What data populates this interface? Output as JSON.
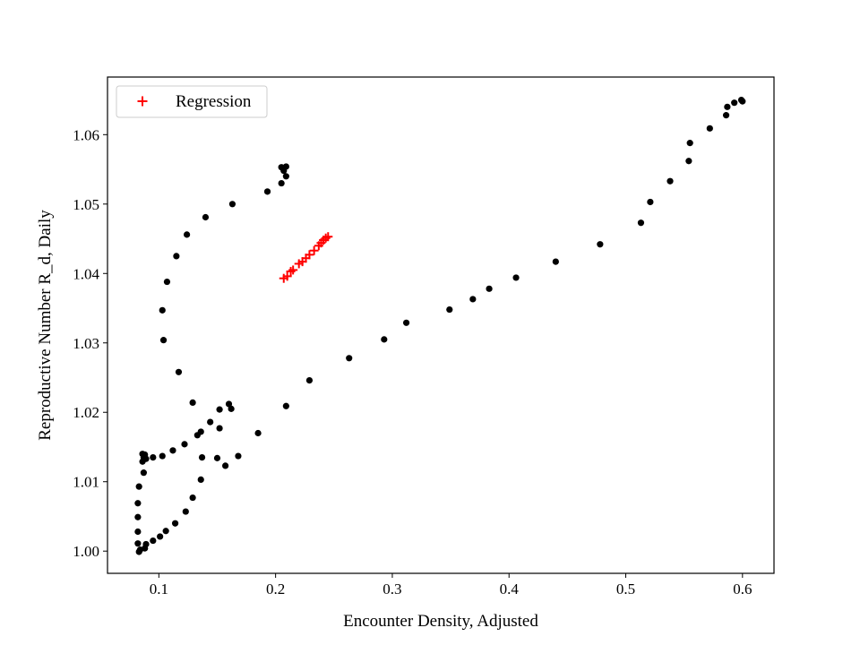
{
  "chart_data": {
    "type": "scatter",
    "xlabel": "Encounter Density, Adjusted",
    "ylabel": "Reproductive Number R_d, Daily",
    "xlim": [
      0.056,
      0.627
    ],
    "ylim": [
      0.9968,
      1.0683
    ],
    "xticks": [
      0.1,
      0.2,
      0.3,
      0.4,
      0.5,
      0.6
    ],
    "xtick_labels": [
      "0.1",
      "0.2",
      "0.3",
      "0.4",
      "0.5",
      "0.6"
    ],
    "yticks": [
      1.0,
      1.01,
      1.02,
      1.03,
      1.04,
      1.05,
      1.06
    ],
    "ytick_labels": [
      "1.00",
      "1.01",
      "1.02",
      "1.03",
      "1.04",
      "1.05",
      "1.06"
    ],
    "grid": false,
    "legend": {
      "position": "top-left",
      "entries": [
        {
          "label": "Regression",
          "marker": "+",
          "color": "#ff0000"
        }
      ]
    },
    "series": [
      {
        "marker": "dot",
        "color": "#000000",
        "points": [
          [
            0.083,
            0.9999
          ],
          [
            0.084,
            1.0002
          ],
          [
            0.088,
            1.0004
          ],
          [
            0.089,
            1.001
          ],
          [
            0.095,
            1.0015
          ],
          [
            0.101,
            1.0021
          ],
          [
            0.106,
            1.0029
          ],
          [
            0.114,
            1.004
          ],
          [
            0.123,
            1.0057
          ],
          [
            0.129,
            1.0077
          ],
          [
            0.136,
            1.0103
          ],
          [
            0.152,
            1.0177
          ],
          [
            0.16,
            1.0212
          ],
          [
            0.209,
            1.0209
          ],
          [
            0.229,
            1.0246
          ],
          [
            0.263,
            1.0278
          ],
          [
            0.293,
            1.0305
          ],
          [
            0.312,
            1.0329
          ],
          [
            0.349,
            1.0348
          ],
          [
            0.369,
            1.0363
          ],
          [
            0.383,
            1.0378
          ],
          [
            0.406,
            1.0394
          ],
          [
            0.44,
            1.0417
          ],
          [
            0.478,
            1.0442
          ],
          [
            0.513,
            1.0473
          ],
          [
            0.521,
            1.0503
          ],
          [
            0.538,
            1.0533
          ],
          [
            0.554,
            1.0562
          ],
          [
            0.555,
            1.0588
          ],
          [
            0.572,
            1.0609
          ],
          [
            0.586,
            1.0628
          ],
          [
            0.587,
            1.064
          ],
          [
            0.593,
            1.0646
          ],
          [
            0.599,
            1.065
          ],
          [
            0.6,
            1.0648
          ],
          [
            0.082,
            1.0011
          ],
          [
            0.082,
            1.0028
          ],
          [
            0.082,
            1.0049
          ],
          [
            0.082,
            1.0069
          ],
          [
            0.083,
            1.0093
          ],
          [
            0.087,
            1.0113
          ],
          [
            0.086,
            1.0129
          ],
          [
            0.087,
            1.0135
          ],
          [
            0.086,
            1.014
          ],
          [
            0.088,
            1.0139
          ],
          [
            0.089,
            1.0133
          ],
          [
            0.095,
            1.0135
          ],
          [
            0.103,
            1.0137
          ],
          [
            0.112,
            1.0145
          ],
          [
            0.122,
            1.0154
          ],
          [
            0.133,
            1.0167
          ],
          [
            0.136,
            1.0172
          ],
          [
            0.144,
            1.0186
          ],
          [
            0.152,
            1.0204
          ],
          [
            0.162,
            1.0205
          ],
          [
            0.137,
            1.0135
          ],
          [
            0.15,
            1.0134
          ],
          [
            0.157,
            1.0123
          ],
          [
            0.168,
            1.0137
          ],
          [
            0.185,
            1.017
          ],
          [
            0.129,
            1.0214
          ],
          [
            0.117,
            1.0258
          ],
          [
            0.104,
            1.0304
          ],
          [
            0.103,
            1.0347
          ],
          [
            0.107,
            1.0388
          ],
          [
            0.115,
            1.0425
          ],
          [
            0.124,
            1.0456
          ],
          [
            0.14,
            1.0481
          ],
          [
            0.163,
            1.05
          ],
          [
            0.193,
            1.0518
          ],
          [
            0.205,
            1.053
          ],
          [
            0.205,
            1.0553
          ],
          [
            0.209,
            1.0554
          ],
          [
            0.209,
            1.054
          ],
          [
            0.207,
            1.0548
          ]
        ]
      },
      {
        "name": "Regression",
        "marker": "+",
        "color": "#ff0000",
        "points": [
          [
            0.207,
            1.0393
          ],
          [
            0.21,
            1.0396
          ],
          [
            0.213,
            1.0403
          ],
          [
            0.215,
            1.0405
          ],
          [
            0.22,
            1.0414
          ],
          [
            0.223,
            1.0417
          ],
          [
            0.226,
            1.0422
          ],
          [
            0.229,
            1.0427
          ],
          [
            0.233,
            1.0433
          ],
          [
            0.237,
            1.044
          ],
          [
            0.239,
            1.0444
          ],
          [
            0.241,
            1.0448
          ],
          [
            0.243,
            1.0451
          ],
          [
            0.245,
            1.0453
          ]
        ]
      }
    ]
  }
}
